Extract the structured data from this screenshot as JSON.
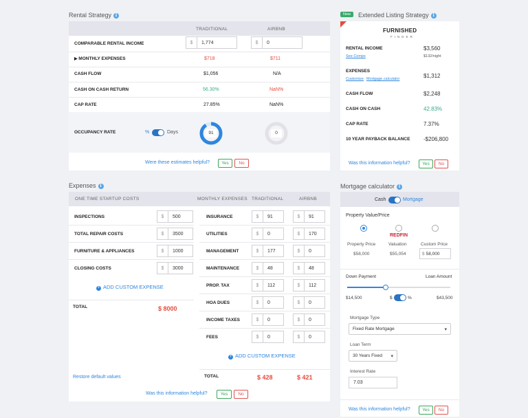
{
  "rental": {
    "title": "Rental Strategy",
    "col_traditional": "TRADITIONAL",
    "col_airbnb": "AIRBNB",
    "rows": {
      "income_label": "COMPARABLE RENTAL INCOME",
      "income_trad": "1,774",
      "income_airbnb": "0",
      "currency": "$",
      "expenses_label": "MONTHLY EXPENSES",
      "expenses_trad": "$718",
      "expenses_airbnb": "$711",
      "cashflow_label": "CASH FLOW",
      "cashflow_trad": "$1,056",
      "cashflow_airbnb": "N/A",
      "coc_label": "CASH ON CASH RETURN",
      "coc_trad": "56.30%",
      "coc_airbnb": "NaN%",
      "cap_label": "CAP RATE",
      "cap_trad": "27.85%",
      "cap_airbnb": "NaN%",
      "occ_label": "OCCUPANCY RATE",
      "occ_pct": "%",
      "occ_days": "Days",
      "occ_trad": "91",
      "occ_airbnb": "0"
    },
    "feedback": {
      "q": "Were these estimates helpful?",
      "yes": "Yes",
      "no": "No"
    }
  },
  "extended": {
    "badge": "New",
    "title": "Extended Listing Strategy",
    "logo_top": "FURNISHED",
    "logo_bottom": "FINDER",
    "income_label": "RENTAL INCOME",
    "income_value": "$3,560",
    "see_comps": "See Comps",
    "nightly": "$132/night",
    "expenses_label": "EXPENSES",
    "expenses_value": "$1,312",
    "customize": "Customize",
    "mortgage_calc": "Mortgage calculator",
    "cashflow_label": "CASH FLOW",
    "cashflow_value": "$2,248",
    "coc_label": "CASH ON CASH",
    "coc_value": "42.83%",
    "cap_label": "CAP RATE",
    "cap_value": "7.37%",
    "payback_label": "10 YEAR PAYBACK BALANCE",
    "payback_value": "-$206,800",
    "feedback": {
      "q": "Was this information helpful?",
      "yes": "Yes",
      "no": "No"
    }
  },
  "expenses": {
    "title": "Expenses",
    "startup_header": "ONE TIME STARTUP COSTS",
    "monthly_header": "MONTHLY EXPENSES",
    "col_traditional": "TRADITIONAL",
    "col_airbnb": "AIRBNB",
    "startup": [
      {
        "label": "INSPECTIONS",
        "value": "500"
      },
      {
        "label": "TOTAL REPAIR COSTS",
        "value": "3500"
      },
      {
        "label": "FURNITURE & APPLIANCES",
        "value": "1000"
      },
      {
        "label": "CLOSING COSTS",
        "value": "3000"
      }
    ],
    "add_startup": "ADD CUSTOM EXPENSE",
    "startup_total_label": "TOTAL",
    "startup_total": "$ 8000",
    "monthly": [
      {
        "label": "INSURANCE",
        "trad": "91",
        "airbnb": "91"
      },
      {
        "label": "UTILITIES",
        "trad": "0",
        "airbnb": "170"
      },
      {
        "label": "MANAGEMENT",
        "trad": "177",
        "airbnb": "0"
      },
      {
        "label": "MAINTENANCE",
        "trad": "48",
        "airbnb": "48"
      },
      {
        "label": "PROP. TAX",
        "trad": "112",
        "airbnb": "112"
      },
      {
        "label": "HOA DUES",
        "trad": "0",
        "airbnb": "0"
      },
      {
        "label": "INCOME TAXES",
        "trad": "0",
        "airbnb": "0"
      },
      {
        "label": "FEES",
        "trad": "0",
        "airbnb": "0"
      }
    ],
    "add_monthly": "ADD CUSTOM EXPENSE",
    "restore": "Restore default values",
    "monthly_total_label": "TOTAL",
    "monthly_total_trad": "$ 428",
    "monthly_total_airbnb": "$ 421",
    "currency": "$",
    "feedback": {
      "q": "Was this information helpful?",
      "yes": "Yes",
      "no": "No"
    }
  },
  "mortgage": {
    "title": "Mortgage calculator",
    "cash": "Cash",
    "mortgage": "Mortgage",
    "pv_label": "Property Value/Price",
    "redfin": "REDFIN",
    "opt1_label": "Property Price",
    "opt1_value": "$58,000",
    "opt2_label": "Valuation",
    "opt2_value": "$55,054",
    "opt3_label": "Custom Price",
    "opt3_value": "58,000",
    "currency": "$",
    "down_label": "Down Payment",
    "loan_label": "Loan Amount",
    "down_value": "$14,500",
    "loan_value": "$43,500",
    "down_fraction": 0.25,
    "type_label": "Mortgage Type",
    "type_value": "Fixed Rate Mortgage",
    "term_label": "Loan Term",
    "term_value": "30 Years Fixed",
    "rate_label": "Interest Rate",
    "rate_value": "7.03",
    "pct": "%",
    "feedback": {
      "q": "Was this information helpful?",
      "yes": "Yes",
      "no": "No"
    }
  },
  "colors": {
    "accent": "#2e86de",
    "red": "#e54b3c",
    "green": "#3aaa8c",
    "header": "#e3e4ec"
  }
}
